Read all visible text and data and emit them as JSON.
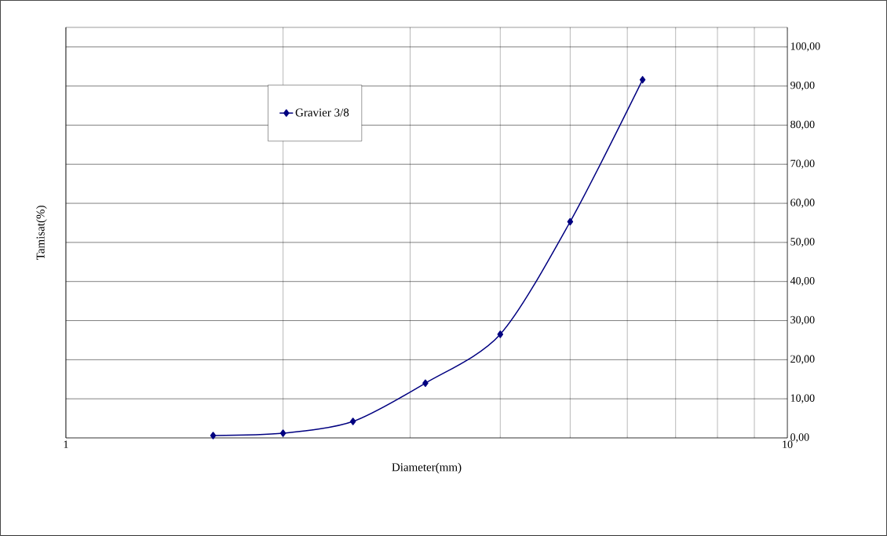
{
  "chart_data": {
    "type": "line",
    "xlabel": "Diameter(mm)",
    "ylabel": "Tamisat(%)",
    "log": "x",
    "xlim": [
      1,
      10
    ],
    "xticks": [
      1,
      10
    ],
    "ylim": [
      0,
      105
    ],
    "yticks": [
      {
        "value": 0,
        "label": "0,00"
      },
      {
        "value": 10,
        "label": "10,00"
      },
      {
        "value": 20,
        "label": "20,00"
      },
      {
        "value": 30,
        "label": "30,00"
      },
      {
        "value": 40,
        "label": "40,00"
      },
      {
        "value": 50,
        "label": "50,00"
      },
      {
        "value": 60,
        "label": "60,00"
      },
      {
        "value": 70,
        "label": "70,00"
      },
      {
        "value": 80,
        "label": "80,00"
      },
      {
        "value": 90,
        "label": "90,00"
      },
      {
        "value": 100,
        "label": "100,00"
      }
    ],
    "grid": true,
    "legend": "top left",
    "marker": "diamond",
    "line_style": "solid",
    "series": [
      {
        "name": "Gravier 3/8",
        "color": "#000080",
        "x": [
          1.6,
          2.0,
          2.5,
          3.15,
          4.0,
          5.0,
          6.3
        ],
        "values": [
          0.6,
          1.2,
          4.2,
          14.0,
          26.5,
          55.3,
          91.6
        ]
      }
    ]
  }
}
